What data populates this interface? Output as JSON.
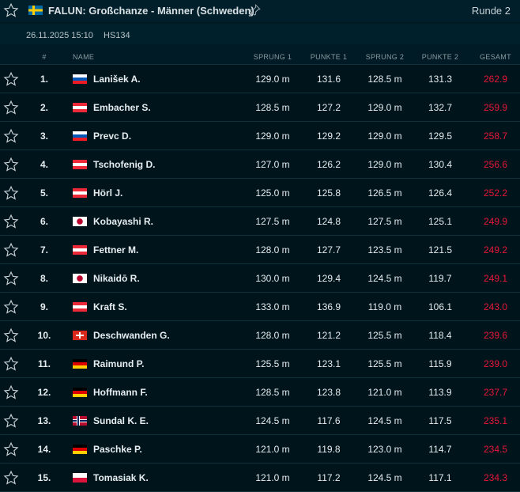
{
  "header": {
    "title": "FALUN: Großchanze - Männer (Schweden)",
    "country": "SWE",
    "round": "Runde 2",
    "date": "26.11.2025 15:10",
    "hill": "HS134"
  },
  "columns": {
    "rank": "#",
    "name": "NAME",
    "jump1": "SPRUNG 1",
    "points1": "PUNKTE 1",
    "jump2": "SPRUNG 2",
    "points2": "PUNKTE 2",
    "total": "GESAMT"
  },
  "colors": {
    "total": "#e8163a",
    "background": "#001a24"
  },
  "rows": [
    {
      "rank": "1.",
      "country": "SLO",
      "name": "Lanišek A.",
      "jump1": "129.0 m",
      "points1": "131.6",
      "jump2": "128.5 m",
      "points2": "131.3",
      "total": "262.9"
    },
    {
      "rank": "2.",
      "country": "AUT",
      "name": "Embacher S.",
      "jump1": "128.5 m",
      "points1": "127.2",
      "jump2": "129.0 m",
      "points2": "132.7",
      "total": "259.9"
    },
    {
      "rank": "3.",
      "country": "SLO",
      "name": "Prevc D.",
      "jump1": "129.0 m",
      "points1": "129.2",
      "jump2": "129.0 m",
      "points2": "129.5",
      "total": "258.7"
    },
    {
      "rank": "4.",
      "country": "AUT",
      "name": "Tschofenig D.",
      "jump1": "127.0 m",
      "points1": "126.2",
      "jump2": "129.0 m",
      "points2": "130.4",
      "total": "256.6"
    },
    {
      "rank": "5.",
      "country": "AUT",
      "name": "Hörl J.",
      "jump1": "125.0 m",
      "points1": "125.8",
      "jump2": "126.5 m",
      "points2": "126.4",
      "total": "252.2"
    },
    {
      "rank": "6.",
      "country": "JPN",
      "name": "Kobayashi R.",
      "jump1": "127.5 m",
      "points1": "124.8",
      "jump2": "127.5 m",
      "points2": "125.1",
      "total": "249.9"
    },
    {
      "rank": "7.",
      "country": "AUT",
      "name": "Fettner M.",
      "jump1": "128.0 m",
      "points1": "127.7",
      "jump2": "123.5 m",
      "points2": "121.5",
      "total": "249.2"
    },
    {
      "rank": "8.",
      "country": "JPN",
      "name": "Nikaidō R.",
      "jump1": "130.0 m",
      "points1": "129.4",
      "jump2": "124.5 m",
      "points2": "119.7",
      "total": "249.1"
    },
    {
      "rank": "9.",
      "country": "AUT",
      "name": "Kraft S.",
      "jump1": "133.0 m",
      "points1": "136.9",
      "jump2": "119.0 m",
      "points2": "106.1",
      "total": "243.0"
    },
    {
      "rank": "10.",
      "country": "SUI",
      "name": "Deschwanden G.",
      "jump1": "128.0 m",
      "points1": "121.2",
      "jump2": "125.5 m",
      "points2": "118.4",
      "total": "239.6"
    },
    {
      "rank": "11.",
      "country": "GER",
      "name": "Raimund P.",
      "jump1": "125.5 m",
      "points1": "123.1",
      "jump2": "125.5 m",
      "points2": "115.9",
      "total": "239.0"
    },
    {
      "rank": "12.",
      "country": "GER",
      "name": "Hoffmann F.",
      "jump1": "128.5 m",
      "points1": "123.8",
      "jump2": "121.0 m",
      "points2": "113.9",
      "total": "237.7"
    },
    {
      "rank": "13.",
      "country": "NOR",
      "name": "Sundal K. E.",
      "jump1": "124.5 m",
      "points1": "117.6",
      "jump2": "124.5 m",
      "points2": "117.5",
      "total": "235.1"
    },
    {
      "rank": "14.",
      "country": "GER",
      "name": "Paschke P.",
      "jump1": "121.0 m",
      "points1": "119.8",
      "jump2": "123.0 m",
      "points2": "114.7",
      "total": "234.5"
    },
    {
      "rank": "15.",
      "country": "POL",
      "name": "Tomasiak K.",
      "jump1": "121.0 m",
      "points1": "117.2",
      "jump2": "124.5 m",
      "points2": "117.1",
      "total": "234.3"
    }
  ]
}
